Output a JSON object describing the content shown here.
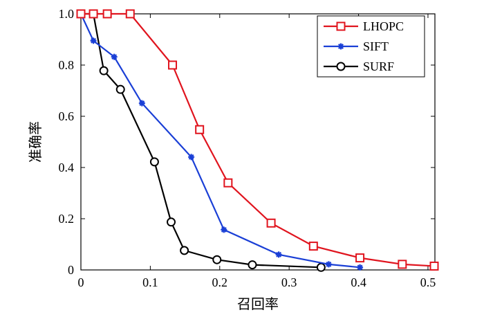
{
  "chart_data": {
    "type": "line",
    "title": "",
    "xlabel": "召回率",
    "ylabel": "准确率",
    "xlim": [
      0,
      0.51
    ],
    "ylim": [
      0,
      1.0
    ],
    "xticks": [
      0,
      0.1,
      0.2,
      0.3,
      0.4,
      0.5
    ],
    "xtick_labels": [
      "0",
      "0.1",
      "0.2",
      "0.3",
      "0.4",
      "0.5"
    ],
    "yticks": [
      0,
      0.2,
      0.4,
      0.6,
      0.8,
      1.0
    ],
    "ytick_labels": [
      "0",
      "0.2",
      "0.4",
      "0.6",
      "0.8",
      "1.0"
    ],
    "grid": false,
    "legend_position": "top-right",
    "series": [
      {
        "name": "LHOPC",
        "color": "#e0141e",
        "marker": "square",
        "x": [
          0.0,
          0.018,
          0.038,
          0.071,
          0.132,
          0.171,
          0.212,
          0.274,
          0.335,
          0.402,
          0.463,
          0.509
        ],
        "y": [
          1.0,
          1.0,
          1.0,
          1.0,
          0.8,
          0.548,
          0.34,
          0.183,
          0.093,
          0.047,
          0.022,
          0.015
        ]
      },
      {
        "name": "SIFT",
        "color": "#1a3fd6",
        "marker": "star",
        "x": [
          0.0,
          0.018,
          0.048,
          0.088,
          0.159,
          0.206,
          0.285,
          0.357,
          0.402
        ],
        "y": [
          1.0,
          0.895,
          0.832,
          0.651,
          0.441,
          0.157,
          0.06,
          0.022,
          0.01
        ]
      },
      {
        "name": "SURF",
        "color": "#000000",
        "marker": "circle",
        "x": [
          0.0,
          0.018,
          0.033,
          0.057,
          0.106,
          0.13,
          0.149,
          0.196,
          0.247,
          0.346
        ],
        "y": [
          1.0,
          1.0,
          0.778,
          0.705,
          0.422,
          0.187,
          0.076,
          0.04,
          0.02,
          0.01
        ]
      }
    ]
  }
}
